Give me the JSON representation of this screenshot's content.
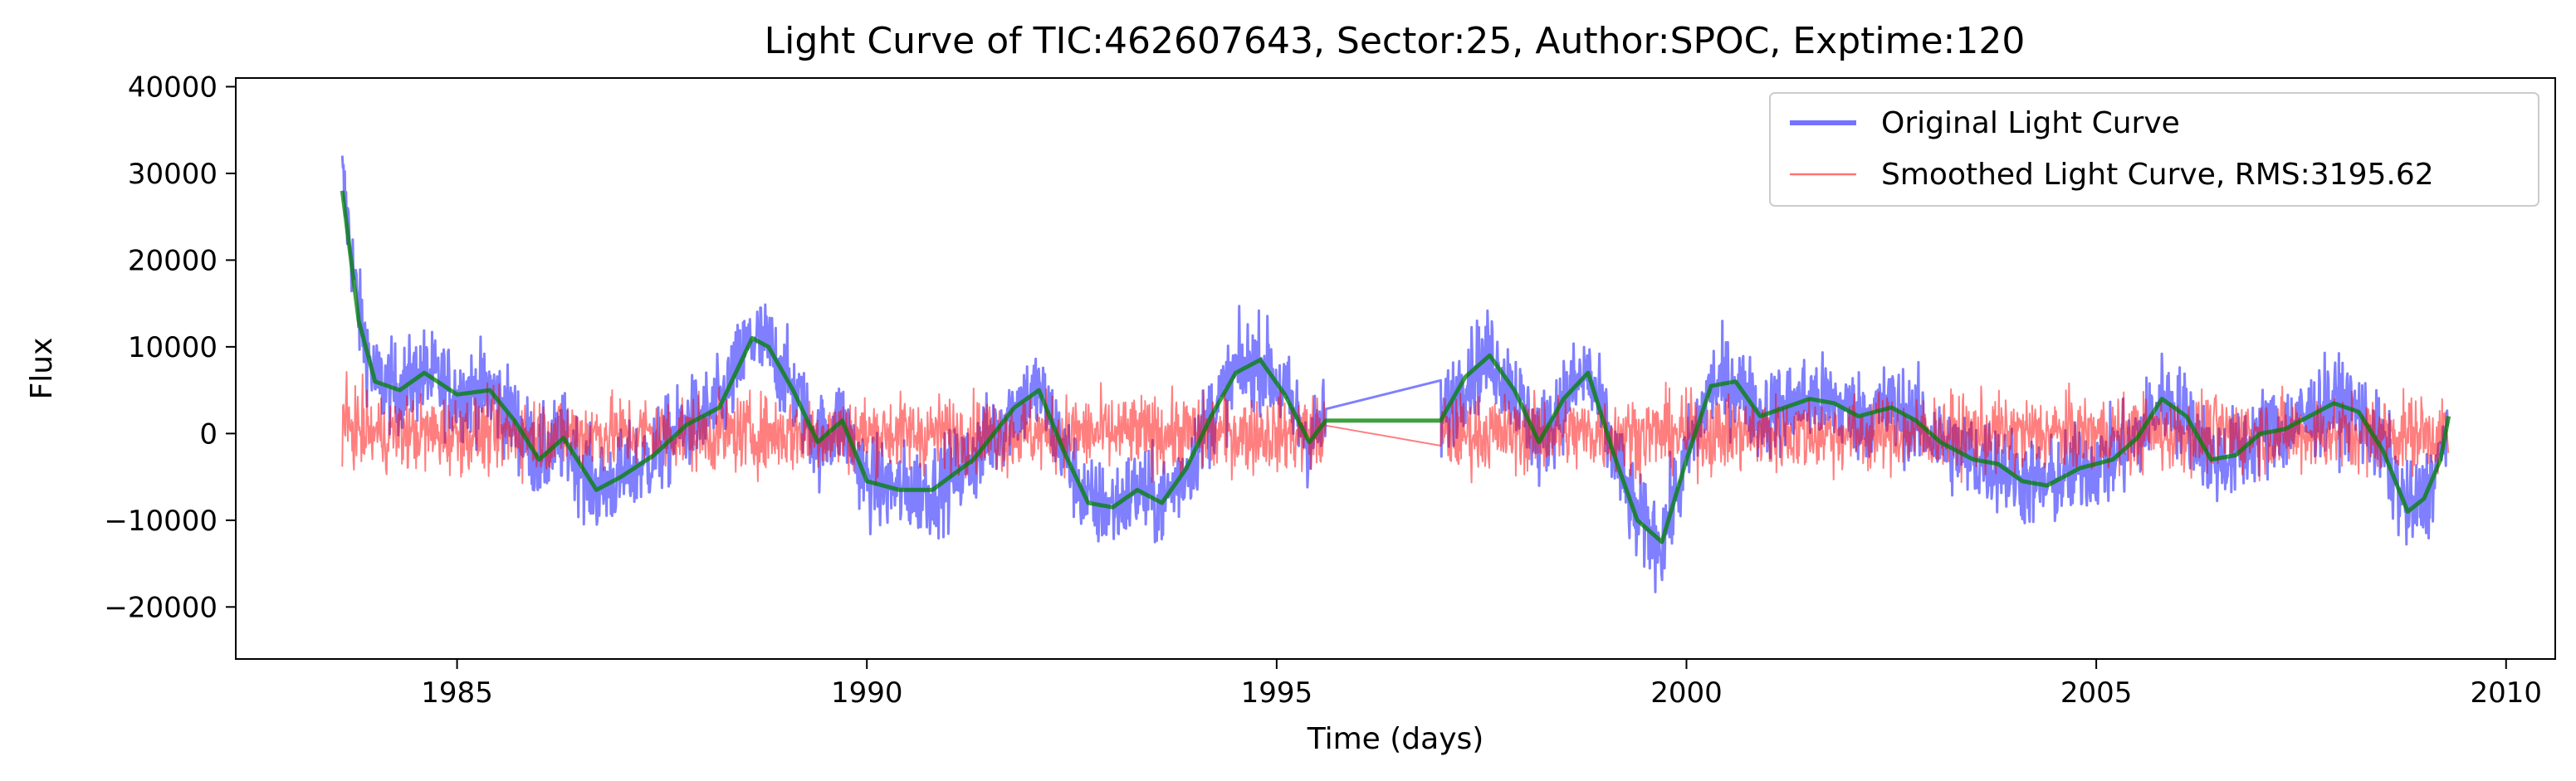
{
  "chart_data": {
    "type": "line",
    "title": "Light Curve of TIC:462607643, Sector:25, Author:SPOC, Exptime:120",
    "xlabel": "Time (days)",
    "ylabel": "Flux",
    "xlim": [
      1982.3,
      2010.6
    ],
    "ylim": [
      -26000,
      41000
    ],
    "xticks": [
      1985,
      1990,
      1995,
      2000,
      2005,
      2010
    ],
    "yticks": [
      -20000,
      -10000,
      0,
      10000,
      20000,
      30000,
      40000
    ],
    "xtick_labels": [
      "1985",
      "1990",
      "1995",
      "2000",
      "2005",
      "2010"
    ],
    "ytick_labels": [
      "−20000",
      "−10000",
      "0",
      "10000",
      "20000",
      "30000",
      "40000"
    ],
    "grid": false,
    "legend_position": "top-right",
    "colors": {
      "original": "#0000ff",
      "smoothed": "#ff0000",
      "trend": "#008000"
    },
    "legend": [
      {
        "label": "Original Light Curve",
        "color": "#0000ff",
        "style": "thick"
      },
      {
        "label": "Smoothed Light Curve, RMS:3195.62",
        "color": "#ff0000",
        "style": "thin"
      }
    ],
    "gap": [
      1995.6,
      1997.0
    ],
    "trend": {
      "x": [
        1983.6,
        1983.8,
        1984.0,
        1984.3,
        1984.6,
        1985.0,
        1985.4,
        1985.7,
        1986.0,
        1986.3,
        1986.7,
        1987.0,
        1987.4,
        1987.8,
        1988.2,
        1988.6,
        1988.8,
        1989.1,
        1989.4,
        1989.7,
        1990.0,
        1990.4,
        1990.8,
        1991.3,
        1991.8,
        1992.1,
        1992.4,
        1992.7,
        1993.0,
        1993.3,
        1993.6,
        1993.9,
        1994.2,
        1994.5,
        1994.8,
        1995.1,
        1995.4,
        1995.6,
        1997.0,
        1997.3,
        1997.6,
        1997.9,
        1998.2,
        1998.5,
        1998.8,
        1999.1,
        1999.4,
        1999.7,
        2000.0,
        2000.3,
        2000.6,
        2000.9,
        2001.2,
        2001.5,
        2001.8,
        2002.1,
        2002.5,
        2002.8,
        2003.1,
        2003.5,
        2003.8,
        2004.1,
        2004.4,
        2004.8,
        2005.2,
        2005.5,
        2005.8,
        2006.1,
        2006.4,
        2006.7,
        2007.0,
        2007.3,
        2007.6,
        2007.9,
        2008.2,
        2008.5,
        2008.8,
        2009.0,
        2009.2,
        2009.3
      ],
      "y": [
        28000,
        13000,
        6000,
        5000,
        7000,
        4500,
        5000,
        1500,
        -3000,
        -500,
        -6500,
        -5000,
        -2500,
        1000,
        3000,
        11000,
        10000,
        5000,
        -1000,
        1500,
        -5500,
        -6500,
        -6500,
        -3000,
        3000,
        5000,
        -2000,
        -8000,
        -8500,
        -6500,
        -8000,
        -4000,
        2000,
        7000,
        8500,
        4500,
        -1000,
        1500,
        1500,
        6500,
        9000,
        5000,
        -1000,
        4000,
        7000,
        -2000,
        -10000,
        -12500,
        -3000,
        5500,
        6000,
        2000,
        3000,
        4000,
        3500,
        2000,
        3000,
        1500,
        -1000,
        -3000,
        -3500,
        -5500,
        -6000,
        -4000,
        -3000,
        -500,
        4000,
        2000,
        -3000,
        -2500,
        0,
        500,
        2000,
        3500,
        2500,
        -2000,
        -9000,
        -7500,
        -3000,
        2000
      ]
    }
  }
}
